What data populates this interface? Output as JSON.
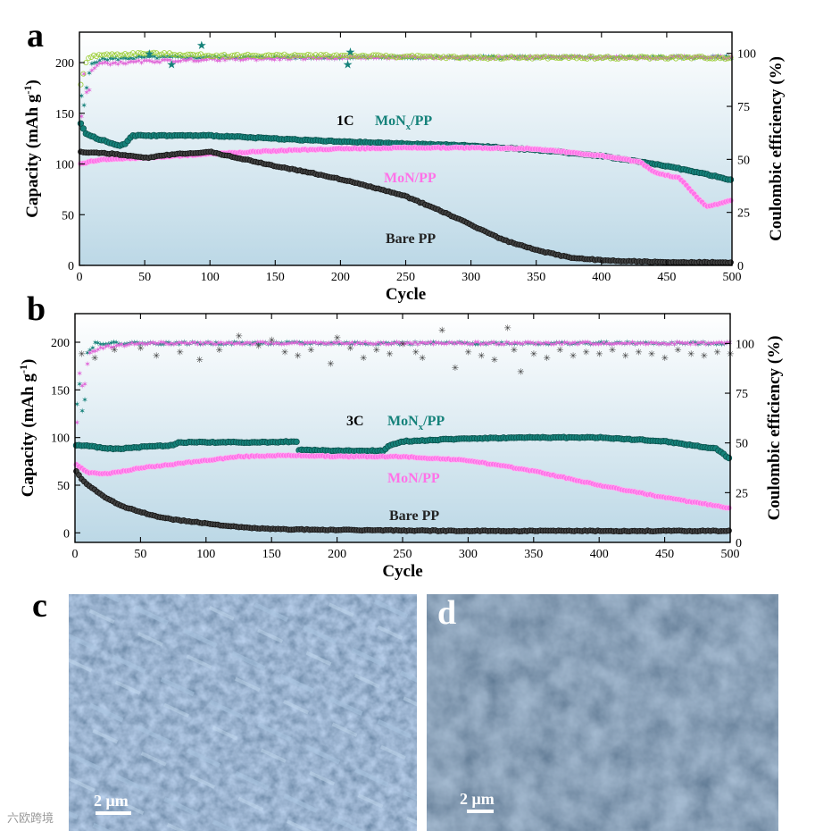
{
  "watermark": "六欧跨境",
  "colors": {
    "mon_x": "#15827a",
    "mon": "#ff72e8",
    "bare": "#3f3f3f",
    "ce_olive": "#9acd32",
    "ce_mon": "#e066d8",
    "bg_top": "#ffffff",
    "bg_bottom": "#bcd8e6",
    "sem_c": "#4a6e92",
    "sem_d": "#3d5d7d"
  },
  "chart_data": [
    {
      "panel": "a",
      "type": "scatter",
      "rate_label": "1C",
      "xlabel": "Cycle",
      "ylabel": "Capacity (mAh g",
      "ylabel_sup": "-1",
      "ylabel_end": ")",
      "y2label": "Coulombic efficiency (%)",
      "xlim": [
        0,
        500
      ],
      "ylim": [
        0,
        230
      ],
      "y2lim": [
        0,
        110
      ],
      "xticks": [
        0,
        50,
        100,
        150,
        200,
        250,
        300,
        350,
        400,
        450,
        500
      ],
      "yticks": [
        0,
        50,
        100,
        150,
        200
      ],
      "y2ticks": [
        0,
        25,
        50,
        75,
        100
      ],
      "series": [
        {
          "name": "MoN",
          "sub": "x",
          "suffix": "/PP",
          "color_key": "mon_x",
          "x": [
            1,
            5,
            10,
            15,
            20,
            25,
            30,
            35,
            40,
            50,
            75,
            100,
            150,
            200,
            250,
            300,
            350,
            400,
            450,
            480,
            500
          ],
          "y": [
            140,
            130,
            127,
            124,
            123,
            120,
            118,
            120,
            128,
            128,
            128,
            128,
            125,
            122,
            120,
            118,
            114,
            108,
            98,
            90,
            84
          ]
        },
        {
          "name": "MoN/PP",
          "color_key": "mon",
          "x": [
            1,
            10,
            25,
            50,
            75,
            100,
            150,
            200,
            250,
            300,
            350,
            400,
            430,
            440,
            460,
            470,
            480,
            500
          ],
          "y": [
            100,
            103,
            105,
            106,
            108,
            110,
            113,
            115,
            116,
            116,
            115,
            108,
            102,
            92,
            86,
            72,
            58,
            64
          ]
        },
        {
          "name": "Bare PP",
          "color_key": "bare",
          "x": [
            1,
            25,
            50,
            75,
            100,
            125,
            150,
            175,
            200,
            225,
            250,
            275,
            300,
            325,
            350,
            375,
            400,
            450,
            500
          ],
          "y": [
            112,
            110,
            106,
            110,
            112,
            105,
            98,
            92,
            85,
            77,
            68,
            55,
            40,
            25,
            15,
            8,
            5,
            3,
            3
          ]
        }
      ],
      "ce_series": [
        {
          "name": "CE MoNx/PP",
          "color_key": "mon_x",
          "x": [
            1,
            3,
            6,
            9,
            15,
            50,
            100,
            200,
            300,
            400,
            500
          ],
          "y": [
            80,
            75,
            88,
            95,
            97,
            98,
            98,
            98,
            98,
            98,
            98
          ]
        },
        {
          "name": "CE MoN/PP",
          "color_key": "ce_mon",
          "x": [
            1,
            3,
            6,
            9,
            15,
            50,
            100,
            200,
            300,
            400,
            500
          ],
          "y": [
            70,
            90,
            78,
            92,
            95,
            96,
            97,
            98,
            98,
            98,
            98
          ]
        },
        {
          "name": "CE Bare PP",
          "color_key": "ce_olive",
          "x": [
            1,
            5,
            10,
            50,
            100,
            200,
            300,
            400,
            500
          ],
          "y": [
            85,
            96,
            99,
            100,
            99,
            99,
            98,
            98,
            98
          ]
        }
      ],
      "ce_outliers": [
        {
          "x": 53,
          "y": 100
        },
        {
          "x": 70,
          "y": 95
        },
        {
          "x": 93,
          "y": 104
        },
        {
          "x": 207,
          "y": 101
        },
        {
          "x": 205,
          "y": 95
        }
      ]
    },
    {
      "panel": "b",
      "type": "scatter",
      "rate_label": "3C",
      "xlabel": "Cycle",
      "ylabel": "Capacity (mAh g",
      "ylabel_sup": "-1",
      "ylabel_end": ")",
      "y2label": "Coulombic efficiency (%)",
      "xlim": [
        0,
        500
      ],
      "ylim": [
        -10,
        230
      ],
      "y2lim": [
        0,
        115
      ],
      "xticks": [
        0,
        50,
        100,
        150,
        200,
        250,
        300,
        350,
        400,
        450,
        500
      ],
      "yticks": [
        0,
        50,
        100,
        150,
        200
      ],
      "y2ticks": [
        0,
        25,
        50,
        75,
        100
      ],
      "series": [
        {
          "name": "MoN",
          "sub": "x",
          "suffix": "/PP",
          "color_key": "mon_x",
          "x": [
            1,
            10,
            30,
            50,
            75,
            80,
            100,
            125,
            150,
            170,
            171,
            200,
            235,
            240,
            250,
            300,
            350,
            400,
            450,
            480,
            490,
            500
          ],
          "y": [
            92,
            91,
            88,
            90,
            92,
            95,
            95,
            95,
            95,
            96,
            87,
            86,
            86,
            92,
            96,
            99,
            100,
            100,
            96,
            90,
            88,
            77
          ]
        },
        {
          "name": "MoN/PP",
          "color_key": "mon",
          "x": [
            1,
            10,
            25,
            50,
            75,
            100,
            125,
            150,
            175,
            200,
            250,
            300,
            350,
            400,
            450,
            500
          ],
          "y": [
            72,
            63,
            62,
            68,
            72,
            76,
            80,
            81,
            81,
            80,
            80,
            76,
            65,
            50,
            37,
            26
          ]
        },
        {
          "name": "Bare PP",
          "color_key": "bare",
          "x": [
            1,
            5,
            10,
            20,
            30,
            40,
            50,
            60,
            75,
            100,
            125,
            150,
            200,
            300,
            400,
            500
          ],
          "y": [
            65,
            57,
            50,
            40,
            32,
            26,
            22,
            18,
            14,
            10,
            6,
            4,
            3,
            2,
            2,
            2
          ]
        }
      ],
      "ce_series": [
        {
          "name": "CE MoNx/PP",
          "color_key": "mon_x",
          "x": [
            1,
            3,
            6,
            9,
            15,
            50,
            100,
            200,
            300,
            400,
            500
          ],
          "y": [
            70,
            80,
            60,
            95,
            100,
            100,
            100,
            100,
            100,
            100,
            100
          ]
        },
        {
          "name": "CE MoN/PP",
          "color_key": "ce_mon",
          "x": [
            1,
            3,
            6,
            10,
            20,
            50,
            100,
            200,
            300,
            400,
            500
          ],
          "y": [
            60,
            85,
            75,
            95,
            98,
            100,
            100,
            100,
            100,
            100,
            100
          ]
        }
      ],
      "ce_scatter_bare": {
        "x": [
          5,
          15,
          30,
          50,
          62,
          80,
          95,
          110,
          125,
          140,
          150,
          160,
          170,
          180,
          195,
          200,
          210,
          220,
          230,
          240,
          250,
          260,
          265,
          280,
          290,
          300,
          310,
          320,
          330,
          335,
          340,
          350,
          360,
          370,
          380,
          390,
          400,
          410,
          420,
          430,
          440,
          450,
          460,
          470,
          480,
          490,
          500
        ],
        "y": [
          95,
          93,
          97,
          98,
          94,
          96,
          92,
          97,
          104,
          99,
          102,
          96,
          94,
          97,
          90,
          103,
          98,
          93,
          97,
          95,
          100,
          96,
          93,
          107,
          88,
          96,
          94,
          92,
          108,
          97,
          86,
          95,
          93,
          97,
          94,
          96,
          95,
          97,
          94,
          96,
          95,
          93,
          97,
          95,
          94,
          96,
          95
        ]
      }
    }
  ],
  "sem": [
    {
      "panel": "c",
      "scale_bar": "2 μm"
    },
    {
      "panel": "d",
      "scale_bar": "2 μm"
    }
  ]
}
